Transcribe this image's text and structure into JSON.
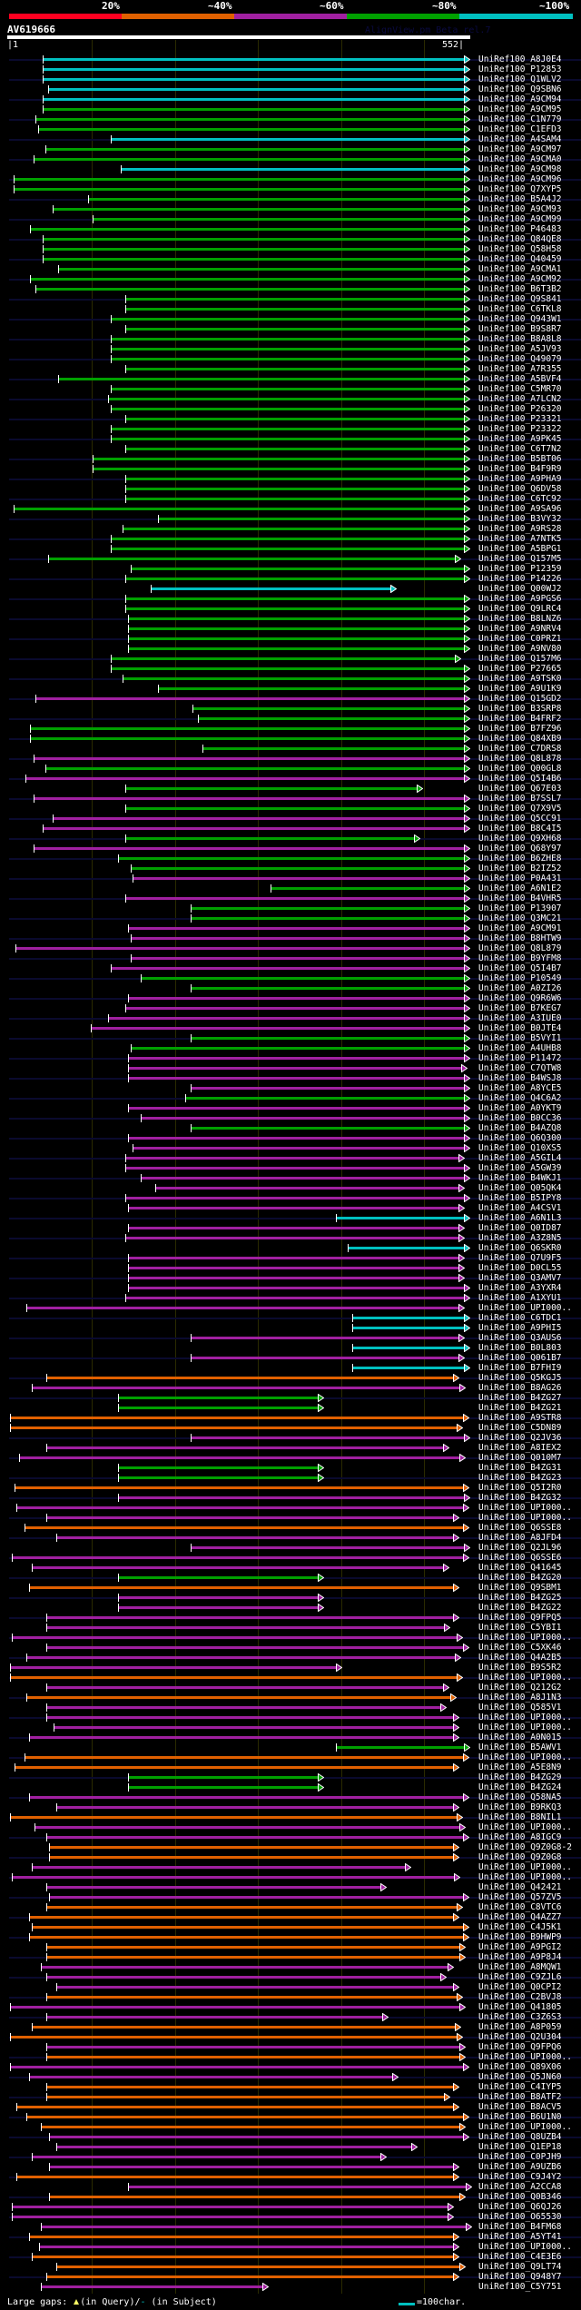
{
  "header": {
    "score_scale": [
      {
        "label": "20%",
        "color": "#ff0020"
      },
      {
        "label": "~40%",
        "color": "#e06000"
      },
      {
        "label": "~60%",
        "color": "#a020a0"
      },
      {
        "label": "~80%",
        "color": "#00a000"
      },
      {
        "label": "~100%",
        "color": "#00c0c0"
      }
    ],
    "query_name": "AV619666",
    "version": "AlignView.pm Beta rel.7",
    "ruler_start": "|1",
    "ruler_end": "552|",
    "query_length": 552
  },
  "colors": {
    "c": "#00c0c0",
    "g": "#00a000",
    "p": "#a020a0",
    "o": "#e06000",
    "r": "#ff0020"
  },
  "hits": [
    [
      "UniRef100_A8J0E4",
      "c",
      41,
      546
    ],
    [
      "UniRef100_P12853",
      "c",
      41,
      546
    ],
    [
      "UniRef100_Q1WLV2",
      "c",
      41,
      546
    ],
    [
      "UniRef100_Q9SBN6",
      "c",
      48,
      546
    ],
    [
      "UniRef100_A9CM94",
      "c",
      41,
      546
    ],
    [
      "UniRef100_A9CM95",
      "g",
      41,
      546
    ],
    [
      "UniRef100_C1N779",
      "g",
      33,
      546
    ],
    [
      "UniRef100_C1EFD3",
      "g",
      36,
      546
    ],
    [
      "UniRef100_A4SAM4",
      "c",
      123,
      546
    ],
    [
      "UniRef100_A9CM97",
      "g",
      45,
      546
    ],
    [
      "UniRef100_A9CMA0",
      "g",
      30,
      546
    ],
    [
      "UniRef100_A9CM98",
      "c",
      135,
      546
    ],
    [
      "UniRef100_A9CM96",
      "g",
      6,
      546
    ],
    [
      "UniRef100_Q7XYP5",
      "g",
      6,
      546
    ],
    [
      "UniRef100_B5A4J2",
      "g",
      96,
      546
    ],
    [
      "UniRef100_A9CM93",
      "g",
      53,
      546
    ],
    [
      "UniRef100_A9CM99",
      "g",
      101,
      546
    ],
    [
      "UniRef100_P46483",
      "g",
      26,
      546
    ],
    [
      "UniRef100_Q84QE8",
      "g",
      41,
      546
    ],
    [
      "UniRef100_Q58H58",
      "g",
      41,
      546
    ],
    [
      "UniRef100_Q40459",
      "g",
      41,
      546
    ],
    [
      "UniRef100_A9CMA1",
      "g",
      60,
      546
    ],
    [
      "UniRef100_A9CM92",
      "g",
      26,
      546
    ],
    [
      "UniRef100_B6T3B2",
      "g",
      33,
      546
    ],
    [
      "UniRef100_Q9S841",
      "g",
      140,
      546
    ],
    [
      "UniRef100_C6TKL8",
      "g",
      140,
      546
    ],
    [
      "UniRef100_Q943W1",
      "g",
      123,
      546
    ],
    [
      "UniRef100_B9S8R7",
      "g",
      140,
      546
    ],
    [
      "UniRef100_B8A8L8",
      "g",
      123,
      546
    ],
    [
      "UniRef100_A5JV93",
      "g",
      123,
      546
    ],
    [
      "UniRef100_Q49079",
      "g",
      123,
      546
    ],
    [
      "UniRef100_A7R355",
      "g",
      140,
      546
    ],
    [
      "UniRef100_A5BVF4",
      "g",
      60,
      546
    ],
    [
      "UniRef100_C5MR70",
      "g",
      123,
      546
    ],
    [
      "UniRef100_A7LCN2",
      "g",
      119,
      546
    ],
    [
      "UniRef100_P26320",
      "g",
      123,
      546
    ],
    [
      "UniRef100_P23321",
      "g",
      140,
      546
    ],
    [
      "UniRef100_P23322",
      "g",
      123,
      546
    ],
    [
      "UniRef100_A9PK45",
      "g",
      123,
      546
    ],
    [
      "UniRef100_C6T7N2",
      "g",
      140,
      546
    ],
    [
      "UniRef100_B5BT06",
      "g",
      101,
      546
    ],
    [
      "UniRef100_B4F9R9",
      "g",
      101,
      546
    ],
    [
      "UniRef100_A9PHA9",
      "g",
      140,
      546
    ],
    [
      "UniRef100_Q6DV58",
      "g",
      140,
      546
    ],
    [
      "UniRef100_C6TC92",
      "g",
      140,
      546
    ],
    [
      "UniRef100_A9SA96",
      "g",
      6,
      546
    ],
    [
      "UniRef100_B3VY32",
      "g",
      179,
      546
    ],
    [
      "UniRef100_A9RS28",
      "g",
      137,
      546
    ],
    [
      "UniRef100_A7NTK5",
      "g",
      123,
      546
    ],
    [
      "UniRef100_A5BPG1",
      "g",
      123,
      546
    ],
    [
      "UniRef100_Q157M5",
      "g",
      48,
      535
    ],
    [
      "UniRef100_P12359",
      "g",
      147,
      546
    ],
    [
      "UniRef100_P14226",
      "g",
      140,
      546
    ],
    [
      "UniRef100_Q00WJ2",
      "c",
      171,
      457
    ],
    [
      "UniRef100_A9PGS6",
      "g",
      140,
      546
    ],
    [
      "UniRef100_Q9LRC4",
      "g",
      140,
      546
    ],
    [
      "UniRef100_B8LNZ6",
      "g",
      143,
      546
    ],
    [
      "UniRef100_A9NRV4",
      "g",
      143,
      546
    ],
    [
      "UniRef100_C0PRZ1",
      "g",
      143,
      546
    ],
    [
      "UniRef100_A9NV80",
      "g",
      143,
      546
    ],
    [
      "UniRef100_Q157M6",
      "g",
      123,
      535
    ],
    [
      "UniRef100_P27665",
      "g",
      123,
      546
    ],
    [
      "UniRef100_A9TSK0",
      "g",
      137,
      546
    ],
    [
      "UniRef100_A9U1K9",
      "g",
      179,
      546
    ],
    [
      "UniRef100_Q15GD2",
      "p",
      33,
      546
    ],
    [
      "UniRef100_B3SRP8",
      "g",
      220,
      546
    ],
    [
      "UniRef100_B4FRF2",
      "g",
      227,
      546
    ],
    [
      "UniRef100_B7FZ96",
      "g",
      26,
      546
    ],
    [
      "UniRef100_Q84XB9",
      "g",
      26,
      546
    ],
    [
      "UniRef100_C7DRS8",
      "g",
      233,
      546
    ],
    [
      "UniRef100_Q8L878",
      "p",
      30,
      546
    ],
    [
      "UniRef100_Q00GL8",
      "g",
      45,
      546
    ],
    [
      "UniRef100_Q5I4B6",
      "p",
      21,
      546
    ],
    [
      "UniRef100_Q67E03",
      "g",
      140,
      489
    ],
    [
      "UniRef100_B7SSL7",
      "p",
      30,
      546
    ],
    [
      "UniRef100_Q7X9V5",
      "g",
      140,
      546
    ],
    [
      "UniRef100_Q5CC91",
      "p",
      53,
      546
    ],
    [
      "UniRef100_B8C4I5",
      "p",
      41,
      546
    ],
    [
      "UniRef100_Q9XH68",
      "g",
      140,
      486
    ],
    [
      "UniRef100_Q68Y97",
      "p",
      30,
      546
    ],
    [
      "UniRef100_B6ZHE8",
      "g",
      131,
      546
    ],
    [
      "UniRef100_B2IZ52",
      "g",
      147,
      546
    ],
    [
      "UniRef100_P0A431",
      "p",
      149,
      546
    ],
    [
      "UniRef100_A6N1E2",
      "g",
      314,
      546
    ],
    [
      "UniRef100_B4VHR5",
      "p",
      140,
      546
    ],
    [
      "UniRef100_P13907",
      "g",
      218,
      546
    ],
    [
      "UniRef100_Q3MC21",
      "g",
      218,
      546
    ],
    [
      "UniRef100_A9CM91",
      "p",
      143,
      546
    ],
    [
      "UniRef100_B8HTW9",
      "p",
      147,
      546
    ],
    [
      "UniRef100_Q8L879",
      "p",
      9,
      546
    ],
    [
      "UniRef100_B9YFM8",
      "p",
      147,
      546
    ],
    [
      "UniRef100_Q5I4B7",
      "p",
      123,
      546
    ],
    [
      "UniRef100_P10549",
      "g",
      159,
      546
    ],
    [
      "UniRef100_A0ZI26",
      "g",
      218,
      546
    ],
    [
      "UniRef100_Q9R6W6",
      "p",
      143,
      546
    ],
    [
      "UniRef100_B7KEG7",
      "p",
      140,
      546
    ],
    [
      "UniRef100_A3IUE0",
      "p",
      119,
      546
    ],
    [
      "UniRef100_B0JTE4",
      "p",
      99,
      546
    ],
    [
      "UniRef100_B5VYI1",
      "g",
      218,
      546
    ],
    [
      "UniRef100_A4UHB8",
      "g",
      147,
      546
    ],
    [
      "UniRef100_P11472",
      "p",
      143,
      546
    ],
    [
      "UniRef100_C7QTW8",
      "p",
      143,
      542
    ],
    [
      "UniRef100_B4WSJ8",
      "p",
      143,
      546
    ],
    [
      "UniRef100_A8YCE5",
      "p",
      218,
      546
    ],
    [
      "UniRef100_Q4C6A2",
      "g",
      212,
      546
    ],
    [
      "UniRef100_A0YKT9",
      "p",
      143,
      546
    ],
    [
      "UniRef100_B0CC36",
      "p",
      159,
      546
    ],
    [
      "UniRef100_B4AZQ8",
      "g",
      218,
      546
    ],
    [
      "UniRef100_Q6Q300",
      "p",
      143,
      546
    ],
    [
      "UniRef100_Q10XS5",
      "p",
      149,
      546
    ],
    [
      "UniRef100_A5GIL4",
      "p",
      140,
      539
    ],
    [
      "UniRef100_A5GW39",
      "p",
      140,
      546
    ],
    [
      "UniRef100_B4WKJ1",
      "p",
      159,
      546
    ],
    [
      "UniRef100_Q05QK4",
      "p",
      176,
      539
    ],
    [
      "UniRef100_B5IPY8",
      "p",
      140,
      546
    ],
    [
      "UniRef100_A4CSV1",
      "p",
      143,
      539
    ],
    [
      "UniRef100_A6N1L3",
      "c",
      392,
      546
    ],
    [
      "UniRef100_Q0ID87",
      "p",
      143,
      539
    ],
    [
      "UniRef100_A3Z8N5",
      "p",
      140,
      539
    ],
    [
      "UniRef100_Q6SKR0",
      "c",
      406,
      546
    ],
    [
      "UniRef100_Q7U9F5",
      "p",
      143,
      539
    ],
    [
      "UniRef100_D0CL55",
      "p",
      143,
      539
    ],
    [
      "UniRef100_Q3AMV7",
      "p",
      143,
      539
    ],
    [
      "UniRef100_A3YXR4",
      "p",
      143,
      546
    ],
    [
      "UniRef100_A1XYU1",
      "p",
      140,
      546
    ],
    [
      "UniRef100_UPI000..",
      "p",
      22,
      539
    ],
    [
      "UniRef100_C6TDC1",
      "c",
      412,
      546
    ],
    [
      "UniRef100_A9PHI5",
      "c",
      412,
      546
    ],
    [
      "UniRef100_Q3AUS6",
      "p",
      218,
      539
    ],
    [
      "UniRef100_B0L803",
      "c",
      412,
      546
    ],
    [
      "UniRef100_Q061B7",
      "p",
      218,
      539
    ],
    [
      "UniRef100_B7FHI9",
      "c",
      412,
      546
    ],
    [
      "UniRef100_Q5KGJ5",
      "o",
      46,
      532
    ],
    [
      "UniRef100_B8AG26",
      "p",
      28,
      540
    ],
    [
      "UniRef100_B4ZG27",
      "g",
      131,
      370
    ],
    [
      "UniRef100_B4ZG21",
      "g",
      131,
      370
    ],
    [
      "UniRef100_A9STR8",
      "o",
      2,
      544
    ],
    [
      "UniRef100_C5DN89",
      "o",
      2,
      537
    ],
    [
      "UniRef100_Q2JV36",
      "p",
      218,
      546
    ],
    [
      "UniRef100_A8IEX2",
      "p",
      46,
      520
    ],
    [
      "UniRef100_Q010M7",
      "p",
      13,
      540
    ],
    [
      "UniRef100_B4ZG31",
      "g",
      131,
      370
    ],
    [
      "UniRef100_B4ZG23",
      "g",
      131,
      370
    ],
    [
      "UniRef100_Q5I2R0",
      "o",
      7,
      544
    ],
    [
      "UniRef100_B4ZG32",
      "p",
      131,
      546
    ],
    [
      "UniRef100_UPI000..",
      "p",
      10,
      544
    ],
    [
      "UniRef100_UPI000..",
      "p",
      46,
      532
    ],
    [
      "UniRef100_Q6SSE8",
      "o",
      19,
      544
    ],
    [
      "UniRef100_A8JFD4",
      "p",
      58,
      532
    ],
    [
      "UniRef100_Q2JL96",
      "p",
      218,
      546
    ],
    [
      "UniRef100_Q6SSE6",
      "p",
      4,
      544
    ],
    [
      "UniRef100_Q41645",
      "p",
      28,
      520
    ],
    [
      "UniRef100_B4ZG20",
      "g",
      131,
      370
    ],
    [
      "UniRef100_Q9SBM1",
      "o",
      25,
      532
    ],
    [
      "UniRef100_B4ZG25",
      "p",
      131,
      370
    ],
    [
      "UniRef100_B4ZG22",
      "p",
      131,
      370
    ],
    [
      "UniRef100_Q9FPQ5",
      "p",
      46,
      532
    ],
    [
      "UniRef100_C5YBI1",
      "p",
      46,
      522
    ],
    [
      "UniRef100_UPI000..",
      "p",
      4,
      537
    ],
    [
      "UniRef100_C5XK46",
      "p",
      46,
      544
    ],
    [
      "UniRef100_Q4A2B5",
      "p",
      22,
      535
    ],
    [
      "UniRef100_B9S5R2",
      "p",
      2,
      392
    ],
    [
      "UniRef100_UPI000..",
      "o",
      2,
      537
    ],
    [
      "UniRef100_Q212G2",
      "p",
      46,
      520
    ],
    [
      "UniRef100_A8J1N3",
      "o",
      22,
      529
    ],
    [
      "UniRef100_Q585V1",
      "p",
      46,
      517
    ],
    [
      "UniRef100_UPI000..",
      "p",
      46,
      532
    ],
    [
      "UniRef100_UPI000..",
      "p",
      54,
      532
    ],
    [
      "UniRef100_A0N015",
      "p",
      25,
      532
    ],
    [
      "UniRef100_B5AWV1",
      "g",
      392,
      546
    ],
    [
      "UniRef100_UPI000..",
      "o",
      19,
      544
    ],
    [
      "UniRef100_A5E8N9",
      "o",
      7,
      532
    ],
    [
      "UniRef100_B4ZG29",
      "g",
      143,
      370
    ],
    [
      "UniRef100_B4ZG24",
      "g",
      143,
      370
    ],
    [
      "UniRef100_Q58NA5",
      "p",
      25,
      544
    ],
    [
      "UniRef100_B9RKQ3",
      "p",
      58,
      532
    ],
    [
      "UniRef100_B8NIL1",
      "o",
      2,
      537
    ],
    [
      "UniRef100_UPI000..",
      "p",
      31,
      540
    ],
    [
      "UniRef100_A8IGC9",
      "p",
      46,
      544
    ],
    [
      "UniRef100_Q9Z0G8-2",
      "o",
      49,
      532
    ],
    [
      "UniRef100_Q9Z0G8",
      "o",
      49,
      532
    ],
    [
      "UniRef100_UPI000..",
      "p",
      28,
      475
    ],
    [
      "UniRef100_UPI000..",
      "p",
      4,
      534
    ],
    [
      "UniRef100_Q42421",
      "p",
      46,
      446
    ],
    [
      "UniRef100_Q57ZV5",
      "p",
      49,
      544
    ],
    [
      "UniRef100_C8VTC6",
      "o",
      46,
      537
    ],
    [
      "UniRef100_Q4AZZ7",
      "o",
      25,
      532
    ],
    [
      "UniRef100_C4J5K1",
      "o",
      28,
      544
    ],
    [
      "UniRef100_B9HWP9",
      "o",
      25,
      544
    ],
    [
      "UniRef100_A9PGI2",
      "o",
      46,
      540
    ],
    [
      "UniRef100_A9P8J4",
      "o",
      46,
      540
    ],
    [
      "UniRef100_A8MQW1",
      "p",
      39,
      526
    ],
    [
      "UniRef100_C9ZJL6",
      "p",
      46,
      517
    ],
    [
      "UniRef100_Q0CPI2",
      "p",
      58,
      532
    ],
    [
      "UniRef100_C2BVJ8",
      "o",
      46,
      537
    ],
    [
      "UniRef100_Q41805",
      "p",
      2,
      540
    ],
    [
      "UniRef100_C3Z6S3",
      "p",
      46,
      448
    ],
    [
      "UniRef100_A8P059",
      "o",
      28,
      535
    ],
    [
      "UniRef100_Q2U304",
      "o",
      2,
      537
    ],
    [
      "UniRef100_Q9FPQ6",
      "p",
      46,
      540
    ],
    [
      "UniRef100_UPI000..",
      "o",
      46,
      540
    ],
    [
      "UniRef100_Q89X06",
      "p",
      2,
      544
    ],
    [
      "UniRef100_Q5JN60",
      "p",
      25,
      460
    ],
    [
      "UniRef100_C4IYP5",
      "o",
      46,
      532
    ],
    [
      "UniRef100_B8ATF2",
      "o",
      46,
      522
    ],
    [
      "UniRef100_B8ACV5",
      "o",
      10,
      532
    ],
    [
      "UniRef100_B6U1N0",
      "o",
      22,
      544
    ],
    [
      "UniRef100_UPI000..",
      "o",
      39,
      540
    ],
    [
      "UniRef100_Q8UZB4",
      "p",
      49,
      544
    ],
    [
      "UniRef100_Q1EP18",
      "p",
      58,
      482
    ],
    [
      "UniRef100_C0PJH9",
      "p",
      28,
      446
    ],
    [
      "UniRef100_A9UZB6",
      "p",
      49,
      532
    ],
    [
      "UniRef100_C9J4Y2",
      "o",
      10,
      532
    ],
    [
      "UniRef100_A2CCA8",
      "p",
      143,
      548
    ],
    [
      "UniRef100_Q0B346",
      "o",
      49,
      540
    ],
    [
      "UniRef100_Q6QJ26",
      "p",
      4,
      526
    ],
    [
      "UniRef100_O65530",
      "p",
      4,
      526
    ],
    [
      "UniRef100_B4FM68",
      "p",
      39,
      548
    ],
    [
      "UniRef100_A5YT41",
      "o",
      25,
      532
    ],
    [
      "UniRef100_UPI000..",
      "p",
      37,
      532
    ],
    [
      "UniRef100_C4E3E6",
      "o",
      28,
      532
    ],
    [
      "UniRef100_Q9LT74",
      "o",
      58,
      540
    ],
    [
      "UniRef100_Q948Y7",
      "o",
      46,
      532
    ],
    [
      "UniRef100_C5Y751",
      "p",
      39,
      304
    ]
  ],
  "footer": {
    "large_gaps_label": "Large gaps:",
    "in_query": "(in Query)/",
    "subject_mark": "-",
    "in_subject": " (in Subject)",
    "scale_label": "=100char."
  }
}
